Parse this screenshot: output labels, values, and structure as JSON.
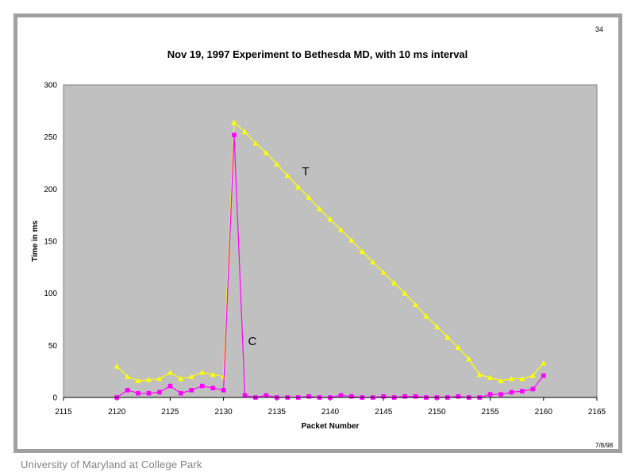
{
  "slide": {
    "number": "34",
    "date": "7/8/98",
    "footer": "University of Maryland at College Park"
  },
  "chart_data": {
    "type": "line",
    "title": "Nov 19, 1997 Experiment to Bethesda MD, with 10 ms interval",
    "xlabel": "Packet Number",
    "ylabel": "Time in ms",
    "xlim": [
      2115,
      2165
    ],
    "ylim": [
      0,
      300
    ],
    "xticks": [
      2115,
      2120,
      2125,
      2130,
      2135,
      2140,
      2145,
      2150,
      2155,
      2160,
      2165
    ],
    "yticks": [
      0,
      50,
      100,
      150,
      200,
      250,
      300
    ],
    "grid": false,
    "legend": "none",
    "plot_background": "#c0c0c0",
    "x": [
      2120,
      2121,
      2122,
      2123,
      2124,
      2125,
      2126,
      2127,
      2128,
      2129,
      2130,
      2131,
      2132,
      2133,
      2134,
      2135,
      2136,
      2137,
      2138,
      2139,
      2140,
      2141,
      2142,
      2143,
      2144,
      2145,
      2146,
      2147,
      2148,
      2149,
      2150,
      2151,
      2152,
      2153,
      2154,
      2155,
      2156,
      2157,
      2158,
      2159,
      2160
    ],
    "series": [
      {
        "name": "T",
        "color": "#ffff00",
        "marker": "triangle",
        "values": [
          30,
          20,
          16,
          17,
          18,
          24,
          18,
          20,
          24,
          22,
          20,
          264,
          255,
          244,
          235,
          224,
          213,
          202,
          192,
          181,
          171,
          161,
          151,
          140,
          130,
          120,
          110,
          100,
          89,
          78,
          68,
          58,
          48,
          37,
          22,
          19,
          16,
          18,
          18,
          21,
          33
        ]
      },
      {
        "name": "C",
        "color": "#ff00ff",
        "marker": "square",
        "values": [
          0,
          7,
          4,
          4,
          5,
          11,
          4,
          7,
          11,
          9,
          7,
          252,
          2,
          0,
          2,
          0,
          0,
          0,
          1,
          0,
          0,
          2,
          1,
          0,
          0,
          1,
          0,
          1,
          1,
          0,
          0,
          0,
          1,
          0,
          0,
          3,
          3,
          5,
          6,
          8,
          21
        ]
      }
    ],
    "annotations": [
      {
        "text": "T",
        "x": 2137.7,
        "y": 217
      },
      {
        "text": "C",
        "x": 2132.7,
        "y": 54
      }
    ]
  }
}
